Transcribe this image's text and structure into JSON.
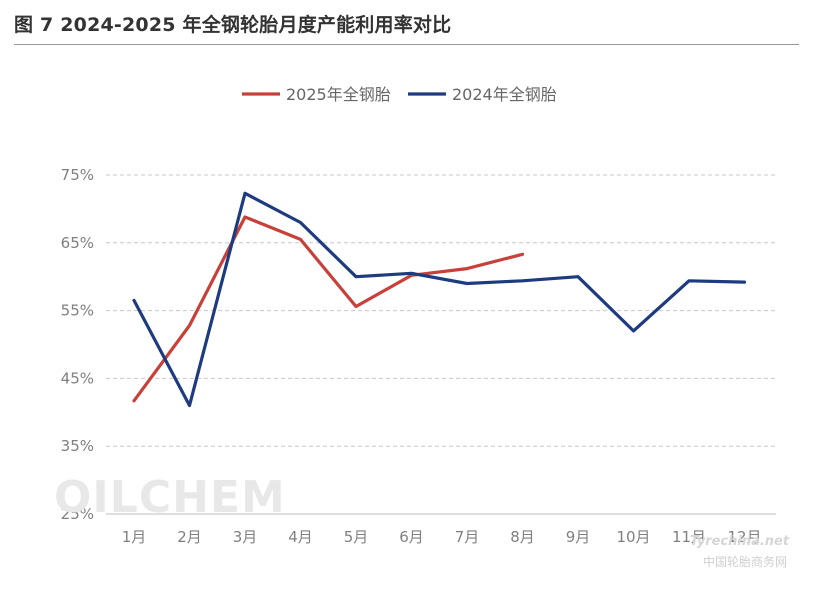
{
  "title": "图 7 2024-2025 年全钢轮胎月度产能利用率对比",
  "watermarks": {
    "oilchem": "OILCHEM",
    "tyre_logo": "Tyrechina.net",
    "tyre_cn": "中国轮胎商务网"
  },
  "chart_data": {
    "type": "line",
    "categories": [
      "1月",
      "2月",
      "3月",
      "4月",
      "5月",
      "6月",
      "7月",
      "8月",
      "9月",
      "10月",
      "11月",
      "12月"
    ],
    "series": [
      {
        "name": "2025年全钢胎",
        "color": "#c8403a",
        "values": [
          41.7,
          52.8,
          68.8,
          65.5,
          55.6,
          60.2,
          61.2,
          63.3,
          null,
          null,
          null,
          null
        ]
      },
      {
        "name": "2024年全钢胎",
        "color": "#1f3b80",
        "values": [
          56.5,
          41.0,
          72.3,
          68.0,
          60.0,
          60.5,
          59.0,
          59.4,
          60.0,
          52.0,
          59.4,
          59.2
        ]
      }
    ],
    "yticks": [
      "25%",
      "35%",
      "45%",
      "55%",
      "65%",
      "75%"
    ],
    "ylim": [
      25,
      75
    ],
    "grid": true,
    "legend_position": "top-center"
  }
}
